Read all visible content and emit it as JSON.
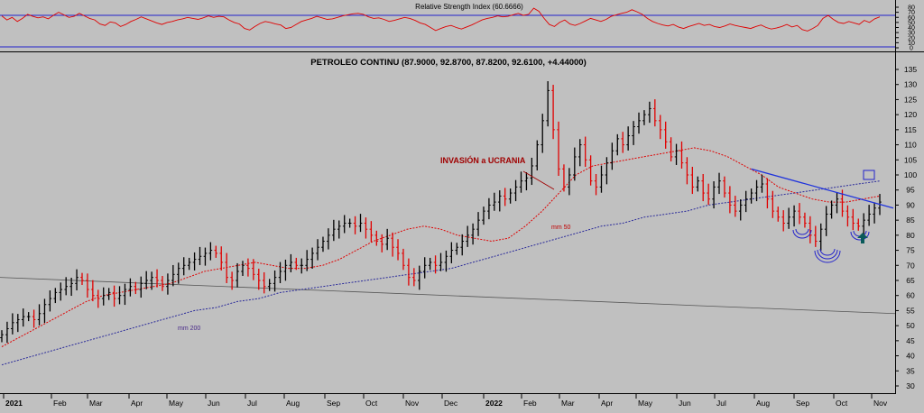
{
  "chart_data": [
    {
      "type": "line",
      "title": "Relative Strength Index (60.6666)",
      "ylim": [
        0,
        80
      ],
      "yticks": [
        0,
        10,
        20,
        30,
        40,
        50,
        60,
        70,
        80
      ],
      "bands": [
        30,
        70
      ],
      "series": [
        {
          "values": [
            63,
            55,
            60,
            52,
            58,
            66,
            62,
            59,
            61,
            57,
            64,
            70,
            65,
            60,
            62,
            68,
            63,
            58,
            55,
            47,
            44,
            51,
            49,
            42,
            46,
            52,
            56,
            61,
            57,
            53,
            49,
            46,
            50,
            52,
            55,
            57,
            60,
            58,
            56,
            59,
            63,
            60,
            62,
            61,
            55,
            50,
            47,
            38,
            35,
            42,
            48,
            52,
            50,
            47,
            45,
            38,
            40,
            46,
            52,
            55,
            58,
            62,
            59,
            56,
            57,
            60,
            63,
            65,
            67,
            68,
            66,
            61,
            58,
            59,
            56,
            52,
            54,
            57,
            60,
            58,
            54,
            49,
            46,
            40,
            34,
            38,
            42,
            44,
            40,
            37,
            41,
            45,
            50,
            55,
            58,
            60,
            63,
            61,
            62,
            65,
            68,
            64,
            66,
            78,
            72,
            58,
            46,
            42,
            50,
            55,
            47,
            44,
            48,
            53,
            58,
            55,
            52,
            56,
            62,
            65,
            68,
            70,
            75,
            71,
            66,
            58,
            52,
            48,
            45,
            43,
            46,
            41,
            38,
            42,
            45,
            48,
            44,
            46,
            42,
            40,
            43,
            47,
            44,
            42,
            40,
            38,
            42,
            45,
            40,
            37,
            39,
            42,
            46,
            41,
            44,
            36,
            33,
            38,
            44,
            58,
            64,
            56,
            50,
            48,
            52,
            49,
            46,
            54,
            50,
            57,
            61
          ]
        }
      ]
    },
    {
      "type": "line",
      "title": "PETROLEO CONTINU (87.9000, 92.8700, 87.8200, 92.6100, +4.44000)",
      "ylim": [
        28,
        140
      ],
      "yticks": [
        30,
        35,
        40,
        45,
        50,
        55,
        60,
        65,
        70,
        75,
        80,
        85,
        90,
        95,
        100,
        105,
        110,
        115,
        120,
        125,
        130,
        135
      ],
      "x_labels": [
        "2021",
        "Feb",
        "Mar",
        "Apr",
        "May",
        "Jun",
        "Jul",
        "Aug",
        "Sep",
        "Oct",
        "Nov",
        "Dec",
        "2022",
        "Feb",
        "Mar",
        "Apr",
        "May",
        "Jun",
        "Jul",
        "Aug",
        "Sep",
        "Oct",
        "Nov"
      ],
      "series": [
        {
          "name": "",
          "values": [
            47,
            49,
            51,
            52,
            53,
            53,
            52,
            54,
            57,
            59,
            61,
            62,
            63,
            64,
            66,
            65,
            62,
            60,
            59,
            60,
            61,
            59,
            60,
            62,
            63,
            62,
            64,
            65,
            66,
            65,
            63,
            65,
            67,
            69,
            70,
            71,
            72,
            73,
            74,
            75,
            74,
            71,
            66,
            65,
            68,
            70,
            69,
            67,
            65,
            63,
            64,
            66,
            68,
            70,
            71,
            70,
            70,
            72,
            74,
            76,
            78,
            80,
            82,
            83,
            84,
            84,
            83,
            84,
            82,
            80,
            78,
            77,
            79,
            76,
            74,
            70,
            66,
            65,
            68,
            70,
            71,
            70,
            71,
            73,
            75,
            76,
            78,
            80,
            82,
            85,
            88,
            90,
            91,
            93,
            92,
            94,
            96,
            98,
            99,
            103,
            110,
            118,
            128,
            115,
            102,
            96,
            100,
            106,
            110,
            105,
            98,
            96,
            100,
            104,
            108,
            112,
            110,
            113,
            116,
            118,
            120,
            122,
            118,
            115,
            111,
            106,
            108,
            104,
            100,
            96,
            98,
            94,
            92,
            96,
            98,
            94,
            90,
            88,
            90,
            92,
            94,
            96,
            97,
            92,
            88,
            86,
            84,
            86,
            88,
            86,
            84,
            80,
            78,
            82,
            87,
            90,
            92,
            88,
            86,
            84,
            83,
            85,
            87,
            89,
            91
          ]
        },
        {
          "name": "mm 50",
          "values": [
            43,
            46,
            49,
            52,
            55,
            58,
            60,
            61,
            62,
            63,
            64,
            66,
            68,
            69,
            70,
            71,
            70,
            69,
            69,
            70,
            72,
            75,
            78,
            80,
            82,
            83,
            82,
            80,
            79,
            78,
            79,
            83,
            88,
            94,
            100,
            103,
            104,
            105,
            106,
            107,
            108,
            109,
            108,
            106,
            103,
            100,
            96,
            94,
            92,
            91,
            91,
            92,
            93
          ]
        },
        {
          "name": "mm 200",
          "values": [
            37,
            39,
            41,
            43,
            45,
            47,
            49,
            51,
            53,
            55,
            56,
            58,
            59,
            61,
            62,
            63,
            64,
            65,
            66,
            67,
            68,
            69,
            71,
            73,
            75,
            77,
            79,
            81,
            83,
            84,
            86,
            87,
            88,
            90,
            91,
            92,
            93,
            94,
            95,
            96,
            97,
            98
          ]
        }
      ],
      "annotations": [
        "INVASIÓN a UCRANIA",
        "mm 50",
        "mm 200"
      ],
      "colors": {
        "price_up": "#000000",
        "price_down": "#e00000",
        "mm50": "#e00000",
        "mm200": "#2a2a9a",
        "trendline": "#1e32dc",
        "longterm_line": "#555555",
        "arrow": "#0a5a5a"
      }
    }
  ]
}
